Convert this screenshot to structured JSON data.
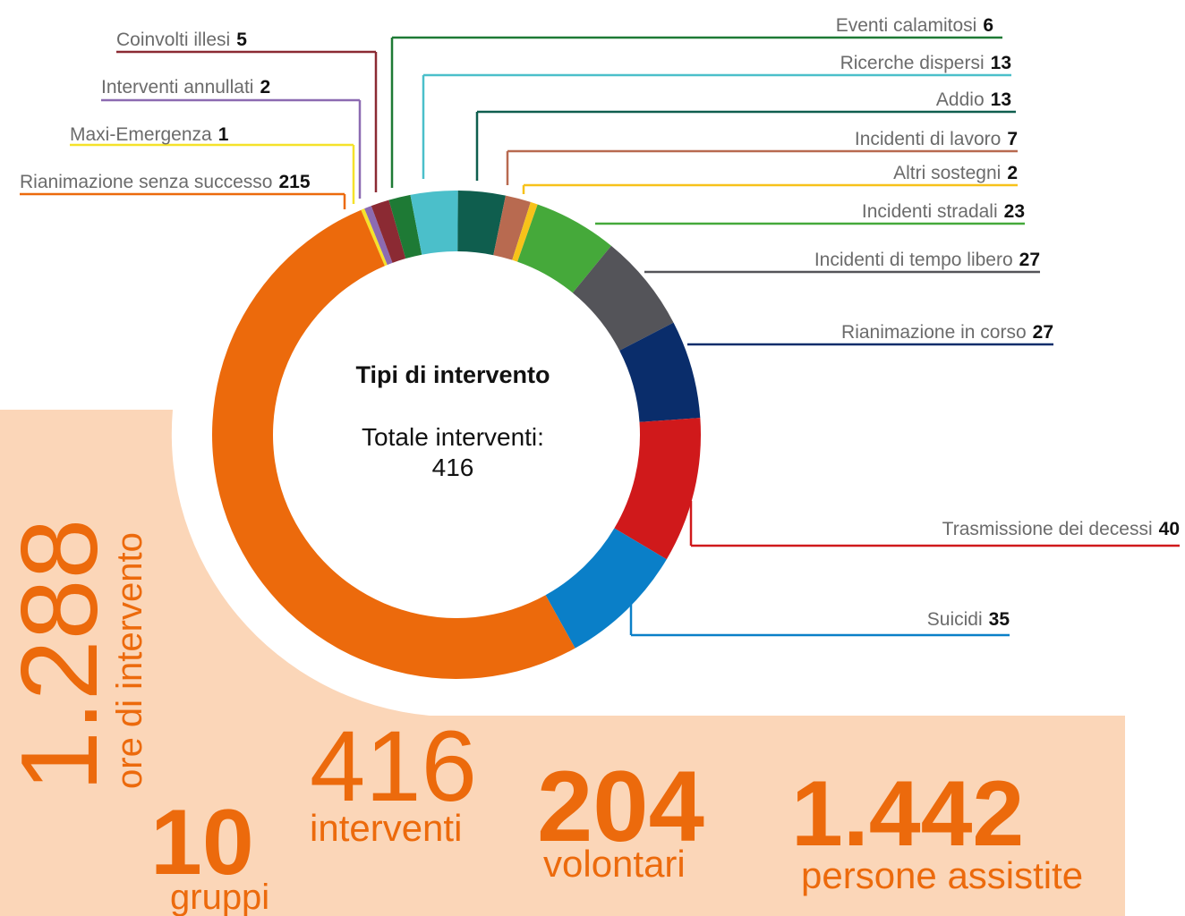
{
  "chart_data": {
    "type": "donut",
    "title": "Tipi di intervento",
    "total_label": "Totale interventi:",
    "total": 416,
    "categories": [
      "Maxi-Emergenza",
      "Interventi annullati",
      "Coinvolti illesi",
      "Eventi calamitosi",
      "Ricerche dispersi",
      "Addio",
      "Incidenti di lavoro",
      "Altri sostegni",
      "Incidenti stradali",
      "Incidenti di tempo libero",
      "Rianimazione in corso",
      "Trasmissione dei decessi",
      "Suicidi",
      "Rianimazione senza successo"
    ],
    "values": [
      1,
      2,
      5,
      6,
      13,
      13,
      7,
      2,
      23,
      27,
      27,
      40,
      35,
      215
    ],
    "colors": [
      "#f5e22a",
      "#8c6bb1",
      "#8b2a33",
      "#1e7a35",
      "#4bbfca",
      "#0f5e4e",
      "#b86a50",
      "#f7c21a",
      "#45a93a",
      "#545459",
      "#0a2d6b",
      "#d0191b",
      "#0a7fc8",
      "#ec6a0c"
    ]
  },
  "stats": [
    {
      "value": "1.288",
      "label": "ore di intervento"
    },
    {
      "value": "10",
      "label": "gruppi"
    },
    {
      "value": "416",
      "label": "interventi"
    },
    {
      "value": "204",
      "label": "volontari"
    },
    {
      "value": "1.442",
      "label": "persone assistite"
    }
  ]
}
